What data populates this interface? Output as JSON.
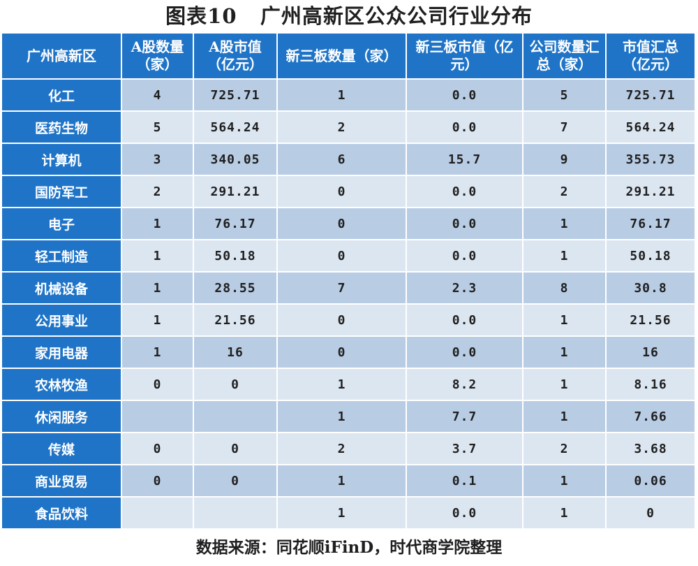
{
  "title": "图表10   广州高新区公众公司行业分布",
  "source": "数据来源：同花顺iFinD，时代商学院整理",
  "colors": {
    "header_bg": "#1f74c7",
    "row_dark": "#b8cce4",
    "row_light": "#dce6f1"
  },
  "table": {
    "headers": [
      "广州高新区",
      "A股数量（家）",
      "A股市值（亿元）",
      "新三板数量（家）",
      "新三板市值（亿元）",
      "公司数量汇总（家）",
      "市值汇总（亿元）"
    ],
    "rows": [
      [
        "化工",
        "4",
        "725.71",
        "1",
        "0.0",
        "5",
        "725.71"
      ],
      [
        "医药生物",
        "5",
        "564.24",
        "2",
        "0.0",
        "7",
        "564.24"
      ],
      [
        "计算机",
        "3",
        "340.05",
        "6",
        "15.7",
        "9",
        "355.73"
      ],
      [
        "国防军工",
        "2",
        "291.21",
        "0",
        "0.0",
        "2",
        "291.21"
      ],
      [
        "电子",
        "1",
        "76.17",
        "0",
        "0.0",
        "1",
        "76.17"
      ],
      [
        "轻工制造",
        "1",
        "50.18",
        "0",
        "0.0",
        "1",
        "50.18"
      ],
      [
        "机械设备",
        "1",
        "28.55",
        "7",
        "2.3",
        "8",
        "30.8"
      ],
      [
        "公用事业",
        "1",
        "21.56",
        "0",
        "0.0",
        "1",
        "21.56"
      ],
      [
        "家用电器",
        "1",
        "16",
        "0",
        "0.0",
        "1",
        "16"
      ],
      [
        "农林牧渔",
        "0",
        "0",
        "1",
        "8.2",
        "1",
        "8.16"
      ],
      [
        "休闲服务",
        "",
        "",
        "1",
        "7.7",
        "1",
        "7.66"
      ],
      [
        "传媒",
        "0",
        "0",
        "2",
        "3.7",
        "2",
        "3.68"
      ],
      [
        "商业贸易",
        "0",
        "0",
        "1",
        "0.1",
        "1",
        "0.06"
      ],
      [
        "食品饮料",
        "",
        "",
        "1",
        "0.0",
        "1",
        "0"
      ]
    ]
  },
  "chart_data": {
    "type": "table",
    "title": "图表10   广州高新区公众公司行业分布",
    "columns": [
      "广州高新区",
      "A股数量（家）",
      "A股市值（亿元）",
      "新三板数量（家）",
      "新三板市值（亿元）",
      "公司数量汇总（家）",
      "市值汇总（亿元）"
    ],
    "rows": [
      [
        "化工",
        4,
        725.71,
        1,
        0.0,
        5,
        725.71
      ],
      [
        "医药生物",
        5,
        564.24,
        2,
        0.0,
        7,
        564.24
      ],
      [
        "计算机",
        3,
        340.05,
        6,
        15.7,
        9,
        355.73
      ],
      [
        "国防军工",
        2,
        291.21,
        0,
        0.0,
        2,
        291.21
      ],
      [
        "电子",
        1,
        76.17,
        0,
        0.0,
        1,
        76.17
      ],
      [
        "轻工制造",
        1,
        50.18,
        0,
        0.0,
        1,
        50.18
      ],
      [
        "机械设备",
        1,
        28.55,
        7,
        2.3,
        8,
        30.8
      ],
      [
        "公用事业",
        1,
        21.56,
        0,
        0.0,
        1,
        21.56
      ],
      [
        "家用电器",
        1,
        16,
        0,
        0.0,
        1,
        16
      ],
      [
        "农林牧渔",
        0,
        0,
        1,
        8.2,
        1,
        8.16
      ],
      [
        "休闲服务",
        null,
        null,
        1,
        7.7,
        1,
        7.66
      ],
      [
        "传媒",
        0,
        0,
        2,
        3.7,
        2,
        3.68
      ],
      [
        "商业贸易",
        0,
        0,
        1,
        0.1,
        1,
        0.06
      ],
      [
        "食品饮料",
        null,
        null,
        1,
        0.0,
        1,
        0
      ]
    ]
  }
}
